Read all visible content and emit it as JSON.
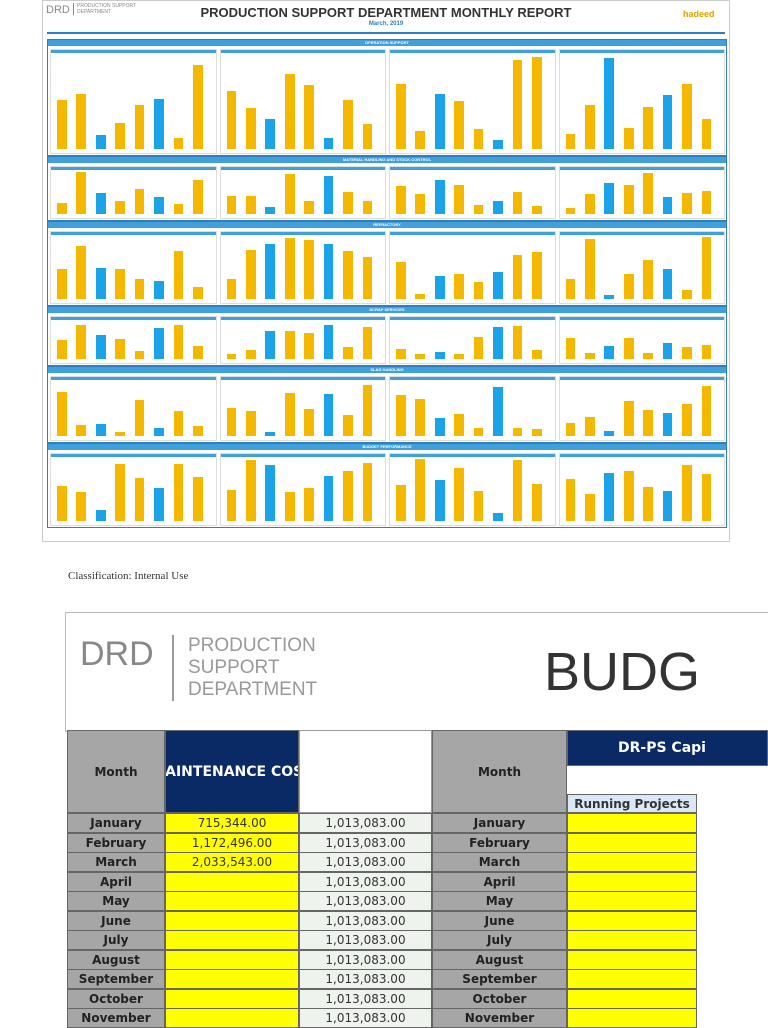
{
  "dashboard": {
    "logo": "DRD",
    "dept": "PRODUCTION SUPPORT DEPARTMENT",
    "title": "PRODUCTION SUPPORT DEPARTMENT MONTHLY REPORT",
    "date": "March, 2019",
    "brand": "hadeed",
    "sections": [
      "OPERATION SUPPORT",
      "MATERIAL HANDLING AND STOCK CONTROL",
      "REFRACTORY",
      "SCRAP SERVICES",
      "SLAG HANDLING",
      "BUDGET PERFORMANCE"
    ]
  },
  "classification": "Classification: Internal Use",
  "zoom": {
    "logo": "DRD",
    "dept": "PRODUCTION SUPPORT DEPARTMENT",
    "title": "BUDG",
    "table": {
      "headers": [
        "Month",
        "MAINTENANCE COST",
        "Month",
        "DR-PS Capi"
      ],
      "subheader": "Running Projects",
      "rows": [
        {
          "month": "January",
          "cost": "715,344.00",
          "budget": "1,013,083.00"
        },
        {
          "month": "February",
          "cost": "1,172,496.00",
          "budget": "1,013,083.00"
        },
        {
          "month": "March",
          "cost": "2,033,543.00",
          "budget": "1,013,083.00"
        },
        {
          "month": "April",
          "budget": "1,013,083.00"
        },
        {
          "month": "May",
          "budget": "1,013,083.00"
        },
        {
          "month": "June",
          "budget": "1,013,083.00"
        },
        {
          "month": "July",
          "budget": "1,013,083.00"
        },
        {
          "month": "August",
          "budget": "1,013,083.00"
        },
        {
          "month": "September",
          "budget": "1,013,083.00"
        },
        {
          "month": "October",
          "budget": "1,013,083.00"
        },
        {
          "month": "November",
          "budget": "1,013,083.00"
        }
      ]
    }
  }
}
